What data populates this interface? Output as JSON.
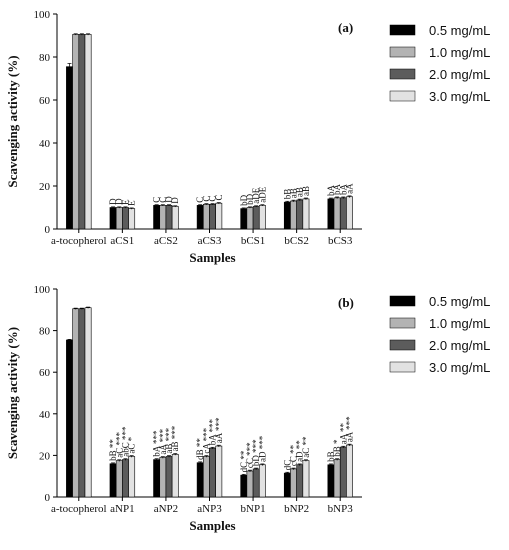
{
  "colors": {
    "series": [
      "#000000",
      "#b3b3b3",
      "#5c5c5c",
      "#e2e2e2"
    ],
    "axis": "#000000"
  },
  "chart_data": [
    {
      "type": "bar",
      "panel_label": "(a)",
      "xlabel": "Samples",
      "ylabel": "Scavenging activity (%)",
      "ylim": [
        0,
        100
      ],
      "yticks": [
        0,
        20,
        40,
        60,
        80,
        100
      ],
      "legend_position": "top-right",
      "categories": [
        "a-tocopherol",
        "aCS1",
        "aCS2",
        "aCS3",
        "bCS1",
        "bCS2",
        "bCS3"
      ],
      "series": [
        {
          "name": "0.5 mg/mL",
          "values": [
            75.5,
            10.0,
            11.0,
            11.0,
            9.5,
            12.5,
            14.0
          ],
          "errors": [
            1.5,
            0.3,
            0.3,
            0.3,
            0.3,
            0.4,
            0.4
          ],
          "labels": [
            "",
            "D",
            "C",
            "C",
            "bD",
            "bB",
            "bA"
          ]
        },
        {
          "name": "1.0 mg/mL",
          "values": [
            90.5,
            10.0,
            11.0,
            11.5,
            10.0,
            13.0,
            14.5
          ],
          "errors": [
            0.3,
            0.3,
            0.3,
            0.3,
            0.3,
            0.4,
            0.4
          ],
          "labels": [
            "",
            "D",
            "C",
            "C",
            "bD",
            "aB",
            "bA"
          ]
        },
        {
          "name": "2.0 mg/mL",
          "values": [
            90.5,
            10.0,
            11.0,
            11.5,
            10.5,
            13.5,
            14.5
          ],
          "errors": [
            0.3,
            0.3,
            0.3,
            0.3,
            0.3,
            0.4,
            0.4
          ],
          "labels": [
            "",
            "E",
            "D",
            "C",
            "aDE",
            "aB",
            "bA"
          ]
        },
        {
          "name": "3.0 mg/mL",
          "values": [
            90.5,
            9.5,
            10.5,
            12.0,
            11.0,
            14.0,
            15.0
          ],
          "errors": [
            0.3,
            0.3,
            0.3,
            0.3,
            0.3,
            0.4,
            0.4
          ],
          "labels": [
            "",
            "E",
            "D",
            "C",
            "aDE",
            "aB",
            "aA"
          ]
        }
      ]
    },
    {
      "type": "bar",
      "panel_label": "(b)",
      "xlabel": "Samples",
      "ylabel": "Scavenging activity (%)",
      "ylim": [
        0,
        100
      ],
      "yticks": [
        0,
        20,
        40,
        60,
        80,
        100
      ],
      "legend_position": "top-right",
      "categories": [
        "a-tocopherol",
        "aNP1",
        "aNP2",
        "aNP3",
        "bNP1",
        "bNP2",
        "bNP3"
      ],
      "series": [
        {
          "name": "0.5 mg/mL",
          "values": [
            75.5,
            16.0,
            18.0,
            16.5,
            10.5,
            11.5,
            15.5
          ],
          "errors": [
            0.3,
            0.4,
            0.4,
            0.4,
            0.4,
            0.4,
            0.4
          ],
          "labels": [
            "",
            "bB **",
            "bA ***",
            "dB **",
            "dC **",
            "dC",
            "bB"
          ]
        },
        {
          "name": "1.0 mg/mL",
          "values": [
            90.5,
            17.5,
            19.0,
            19.5,
            12.5,
            13.5,
            18.0
          ],
          "errors": [
            0.3,
            0.4,
            0.4,
            0.4,
            0.4,
            0.4,
            0.4
          ],
          "labels": [
            "",
            "aC ***",
            "aA ***",
            "cA ***",
            "cC ***",
            "cC **",
            "bB *"
          ]
        },
        {
          "name": "2.0 mg/mL",
          "values": [
            90.5,
            18.0,
            19.5,
            23.5,
            13.5,
            15.5,
            24.0
          ],
          "errors": [
            0.3,
            0.4,
            0.4,
            0.4,
            0.4,
            0.4,
            0.4
          ],
          "labels": [
            "",
            "abC ***",
            "aB ***",
            "bA ***",
            "bD ***",
            "aD **",
            "aA **"
          ]
        },
        {
          "name": "3.0 mg/mL",
          "values": [
            91.0,
            19.5,
            20.5,
            24.5,
            15.5,
            17.5,
            25.0
          ],
          "errors": [
            0.3,
            0.4,
            0.4,
            0.4,
            0.4,
            0.4,
            0.4
          ],
          "labels": [
            "",
            "aC *",
            "aB ***",
            "aA ***",
            "aD ***",
            "aC **",
            "aA ***"
          ]
        }
      ]
    }
  ]
}
